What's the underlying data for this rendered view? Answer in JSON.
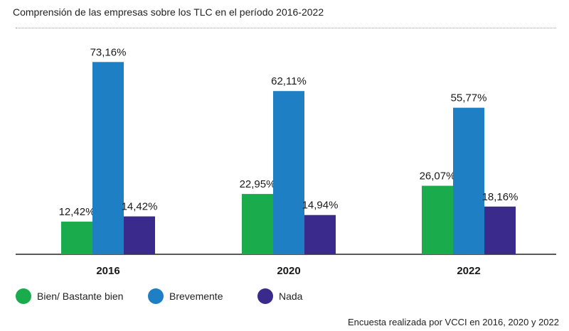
{
  "chart_data": {
    "type": "bar",
    "title": "Comprensión de las empresas sobre los TLC en el período 2016-2022",
    "categories": [
      "2016",
      "2020",
      "2022"
    ],
    "series": [
      {
        "name": "Bien/ Bastante bien",
        "color": "#1aab4c",
        "values": [
          12.42,
          22.95,
          26.07
        ],
        "labels": [
          "12,42%",
          "22,95%",
          "26,07%"
        ]
      },
      {
        "name": "Brevemente",
        "color": "#1f7fc4",
        "values": [
          73.16,
          62.11,
          55.77
        ],
        "labels": [
          "73,16%",
          "62,11%",
          "55,77%"
        ]
      },
      {
        "name": "Nada",
        "color": "#3a2a8c",
        "values": [
          14.42,
          14.94,
          18.16
        ],
        "labels": [
          "14,42%",
          "14,94%",
          "18,16%"
        ]
      }
    ],
    "ylim": [
      0,
      80
    ],
    "grid": false,
    "legend_position": "bottom-left"
  },
  "footnote": "Encuesta realizada por VCCI en 2016, 2020 y 2022"
}
